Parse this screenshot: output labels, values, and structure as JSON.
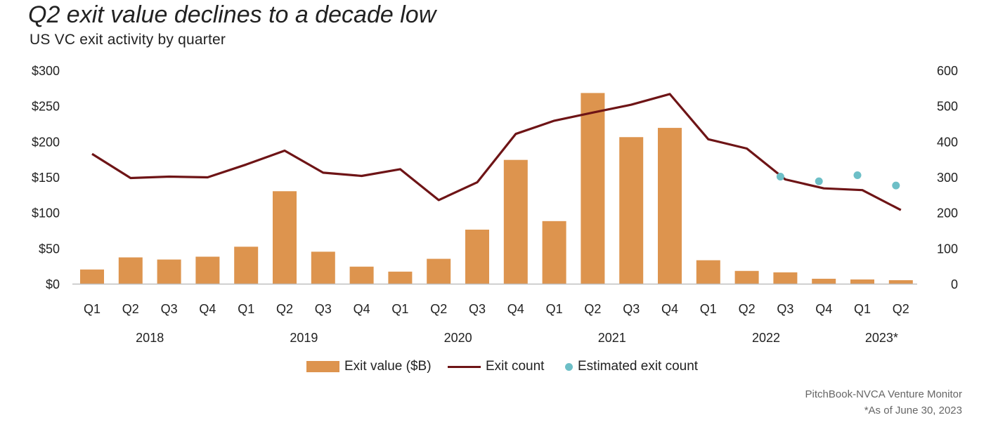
{
  "header": {
    "title": "Q2 exit value declines to a decade low",
    "subtitle": "US VC exit activity by quarter"
  },
  "footer": {
    "source": "PitchBook-NVCA Venture Monitor",
    "note": "*As of June 30, 2023"
  },
  "colors": {
    "bar": "#DD944E",
    "line": "#6E1416",
    "estimate": "#6DBFC7",
    "axis": "#BFBFBF"
  },
  "chart_data": {
    "type": "bar",
    "title": "Q2 exit value declines to a decade low",
    "subtitle": "US VC exit activity by quarter",
    "categories": [
      "Q1",
      "Q2",
      "Q3",
      "Q4",
      "Q1",
      "Q2",
      "Q3",
      "Q4",
      "Q1",
      "Q2",
      "Q3",
      "Q4",
      "Q1",
      "Q2",
      "Q3",
      "Q4",
      "Q1",
      "Q2",
      "Q3",
      "Q4",
      "Q1",
      "Q2"
    ],
    "years": [
      {
        "label": "2018",
        "start": 0,
        "end": 3
      },
      {
        "label": "2019",
        "start": 4,
        "end": 7
      },
      {
        "label": "2020",
        "start": 8,
        "end": 11
      },
      {
        "label": "2021",
        "start": 12,
        "end": 15
      },
      {
        "label": "2022",
        "start": 16,
        "end": 19
      },
      {
        "label": "2023*",
        "start": 20,
        "end": 21
      }
    ],
    "series": [
      {
        "name": "Exit value ($B)",
        "type": "bar",
        "axis": "left",
        "values": [
          20,
          37,
          34,
          38,
          52,
          130,
          45,
          24,
          17,
          35,
          76,
          174,
          88,
          268,
          206,
          219,
          33,
          18,
          16,
          7,
          6,
          5
        ]
      },
      {
        "name": "Exit count",
        "type": "line",
        "axis": "right",
        "values": [
          365,
          297,
          301,
          299,
          335,
          374,
          312,
          303,
          322,
          235,
          285,
          421,
          458,
          481,
          503,
          533,
          406,
          380,
          293,
          268,
          263,
          207
        ]
      },
      {
        "name": "Estimated exit count",
        "type": "scatter",
        "axis": "right",
        "points": [
          {
            "index": 18,
            "value": 301
          },
          {
            "index": 19,
            "value": 288
          },
          {
            "index": 20,
            "value": 305
          },
          {
            "index": 21,
            "value": 276
          }
        ]
      }
    ],
    "yaxis_left": {
      "min": 0,
      "max": 300,
      "ticks": [
        0,
        50,
        100,
        150,
        200,
        250,
        300
      ],
      "tick_labels": [
        "$0",
        "$50",
        "$100",
        "$150",
        "$200",
        "$250",
        "$300"
      ]
    },
    "yaxis_right": {
      "min": 0,
      "max": 600,
      "ticks": [
        0,
        100,
        200,
        300,
        400,
        500,
        600
      ],
      "tick_labels": [
        "0",
        "100",
        "200",
        "300",
        "400",
        "500",
        "600"
      ]
    },
    "grid": false,
    "legend_position": "bottom"
  }
}
